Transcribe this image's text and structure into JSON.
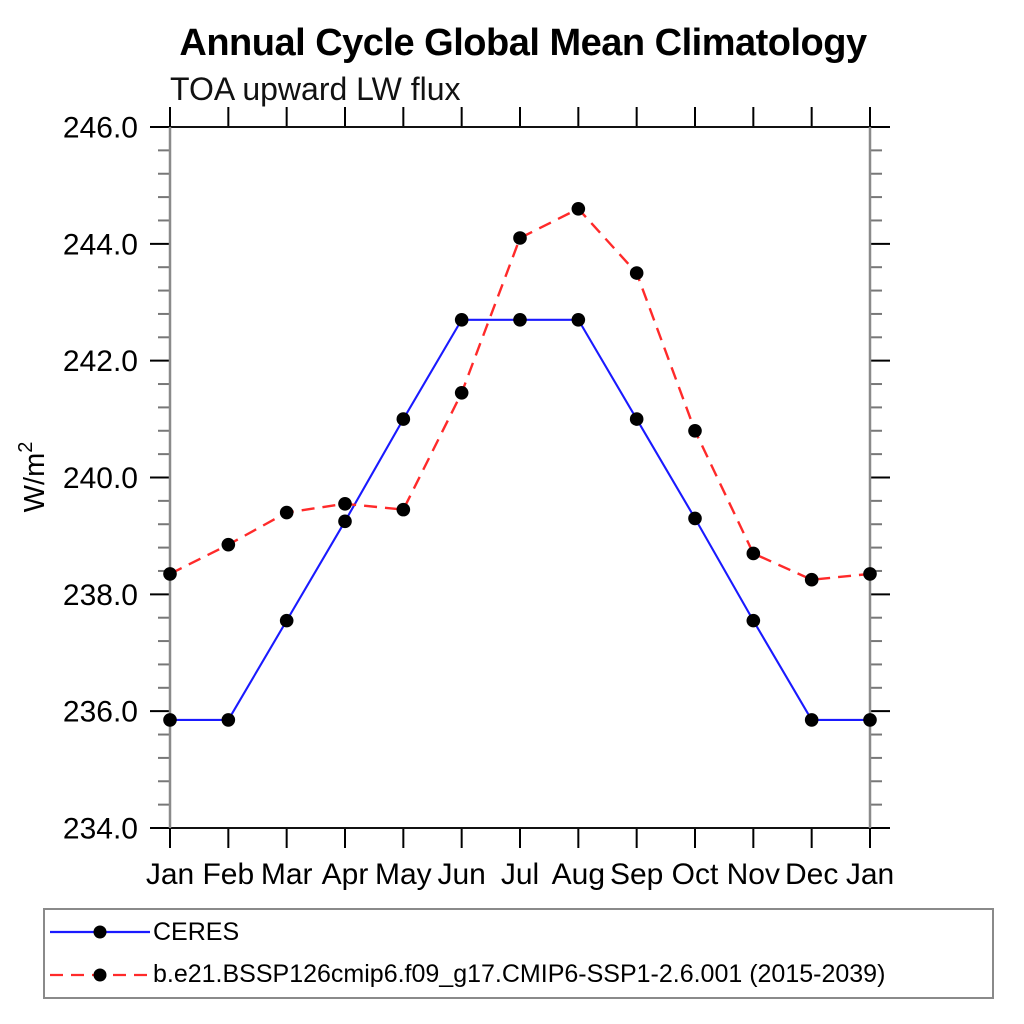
{
  "chart_data": {
    "type": "line",
    "title": "Annual Cycle Global Mean Climatology",
    "subtitle": "TOA upward LW flux",
    "xlabel": "",
    "ylabel": "W/m²",
    "ylim": [
      234.0,
      246.0
    ],
    "ytick_step": 2.0,
    "yminor_step": 0.4,
    "ytick_labels": [
      "234.0",
      "236.0",
      "238.0",
      "240.0",
      "242.0",
      "244.0",
      "246.0"
    ],
    "categories": [
      "Jan",
      "Feb",
      "Mar",
      "Apr",
      "May",
      "Jun",
      "Jul",
      "Aug",
      "Sep",
      "Oct",
      "Nov",
      "Dec",
      "Jan"
    ],
    "grid": false,
    "legend_position": "bottom-left-box",
    "marker": {
      "shape": "circle",
      "color": "#000000",
      "radius_px": 6.8
    },
    "axis_colors": {
      "top_bottom": "#111111",
      "left_right": "#8a8a8a",
      "major_tick": "#000000",
      "minor_tick": "#777777"
    },
    "series": [
      {
        "name": "CERES",
        "color": "#1a1aff",
        "line_style": "solid",
        "values": [
          235.85,
          235.85,
          237.55,
          239.25,
          241.0,
          242.7,
          242.7,
          242.7,
          241.0,
          239.3,
          237.55,
          235.85,
          235.85
        ]
      },
      {
        "name": "b.e21.BSSP126cmip6.f09_g17.CMIP6-SSP1-2.6.001 (2015-2039)",
        "color": "#ff2a2a",
        "line_style": "dashed",
        "values": [
          238.35,
          238.85,
          239.4,
          239.55,
          239.45,
          241.45,
          244.1,
          244.6,
          243.5,
          240.8,
          238.7,
          238.25,
          238.35
        ]
      }
    ]
  }
}
